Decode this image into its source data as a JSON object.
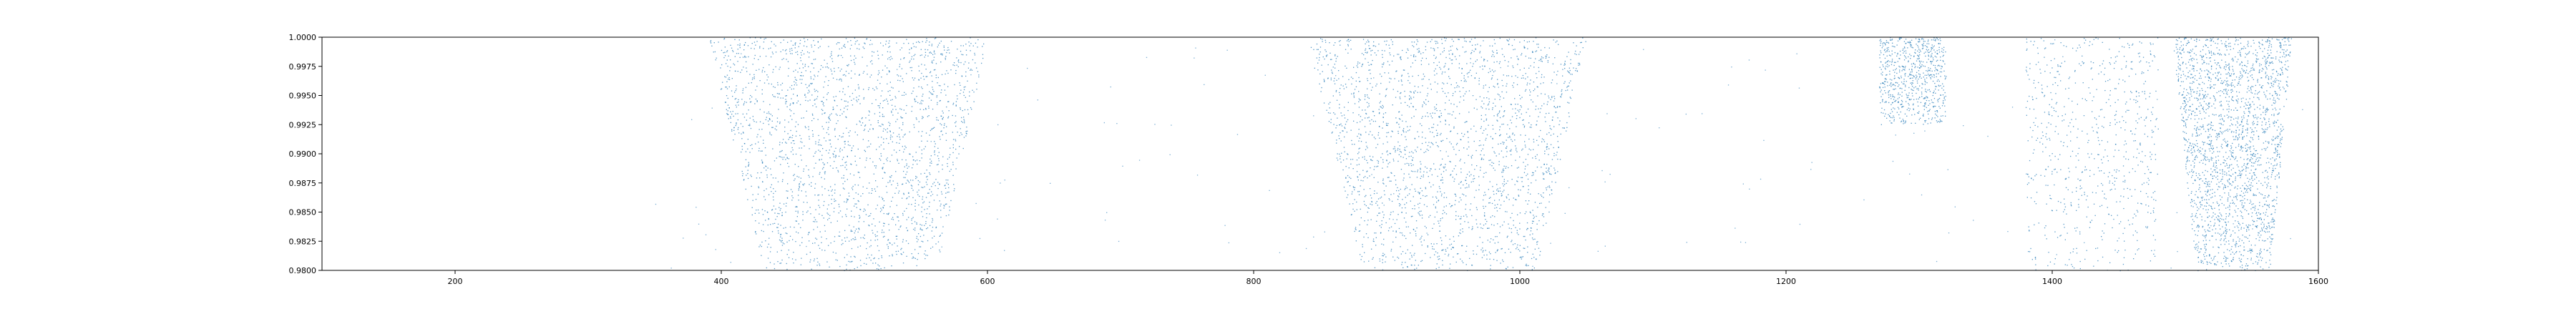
{
  "chart_data": {
    "type": "scatter",
    "title": "",
    "xlabel": "",
    "ylabel": "",
    "xlim": [
      100,
      1600
    ],
    "ylim": [
      0.98,
      1.0
    ],
    "x_ticks": [
      200,
      400,
      600,
      800,
      1000,
      1200,
      1400,
      1600
    ],
    "x_tick_labels": [
      "200",
      "400",
      "600",
      "800",
      "1000",
      "1200",
      "1400",
      "1600"
    ],
    "y_ticks": [
      0.98,
      0.9825,
      0.985,
      0.9875,
      0.99,
      0.9925,
      0.995,
      0.9975,
      1.0
    ],
    "y_tick_labels": [
      "0.9800",
      "0.9825",
      "0.9850",
      "0.9875",
      "0.9900",
      "0.9925",
      "0.9950",
      "0.9975",
      "1.0000"
    ],
    "grid": false,
    "legend": false,
    "marker_color": "#1f77b4",
    "series": [
      {
        "clusters": [
          {
            "x_range": [
              390,
              600
            ],
            "y_range": [
              0.98,
              1.0
            ],
            "density": "high",
            "shape": "funnel"
          },
          {
            "x_range": [
              840,
              1050
            ],
            "y_range": [
              0.98,
              1.0
            ],
            "density": "high",
            "shape": "funnel"
          },
          {
            "x_range": [
              1270,
              1320
            ],
            "y_range": [
              0.9925,
              1.0
            ],
            "density": "medium",
            "shape": "band"
          },
          {
            "x_range": [
              1380,
              1480
            ],
            "y_range": [
              0.98,
              1.0
            ],
            "density": "medium",
            "shape": "band"
          },
          {
            "x_range": [
              1490,
              1580
            ],
            "y_range": [
              0.98,
              1.0
            ],
            "density": "high",
            "shape": "funnel"
          }
        ],
        "background_density": "sparse"
      }
    ]
  }
}
